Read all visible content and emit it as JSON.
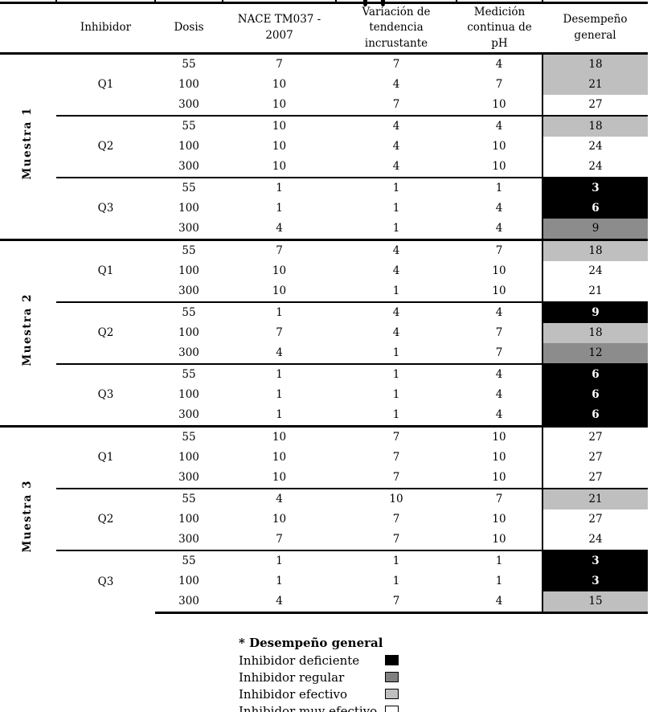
{
  "table": {
    "headers": [
      "",
      "Inhibidor",
      "Dosis",
      "NACE TM037 -\n2007",
      "Variación de\ntendencia\nincrustante",
      "Medición\ncontinua de\npH",
      "Desempeño\ngeneral"
    ],
    "groups": [
      {
        "sample": "Muestra 1",
        "inhibitors": [
          {
            "name": "Q1",
            "rows": [
              {
                "dosis": 55,
                "nace": 7,
                "variacion": 7,
                "ph": 4,
                "total": 18,
                "rating": "efectivo"
              },
              {
                "dosis": 100,
                "nace": 10,
                "variacion": 4,
                "ph": 7,
                "total": 21,
                "rating": "efectivo"
              },
              {
                "dosis": 300,
                "nace": 10,
                "variacion": 7,
                "ph": 10,
                "total": 27,
                "rating": "muy-efectivo"
              }
            ]
          },
          {
            "name": "Q2",
            "rows": [
              {
                "dosis": 55,
                "nace": 10,
                "variacion": 4,
                "ph": 4,
                "total": 18,
                "rating": "efectivo"
              },
              {
                "dosis": 100,
                "nace": 10,
                "variacion": 4,
                "ph": 10,
                "total": 24,
                "rating": "muy-efectivo"
              },
              {
                "dosis": 300,
                "nace": 10,
                "variacion": 4,
                "ph": 10,
                "total": 24,
                "rating": "muy-efectivo"
              }
            ]
          },
          {
            "name": "Q3",
            "rows": [
              {
                "dosis": 55,
                "nace": 1,
                "variacion": 1,
                "ph": 1,
                "total": 3,
                "rating": "deficiente"
              },
              {
                "dosis": 100,
                "nace": 1,
                "variacion": 1,
                "ph": 4,
                "total": 6,
                "rating": "deficiente"
              },
              {
                "dosis": 300,
                "nace": 4,
                "variacion": 1,
                "ph": 4,
                "total": 9,
                "rating": "regular"
              }
            ]
          }
        ]
      },
      {
        "sample": "Muestra 2",
        "inhibitors": [
          {
            "name": "Q1",
            "rows": [
              {
                "dosis": 55,
                "nace": 7,
                "variacion": 4,
                "ph": 7,
                "total": 18,
                "rating": "efectivo"
              },
              {
                "dosis": 100,
                "nace": 10,
                "variacion": 4,
                "ph": 10,
                "total": 24,
                "rating": "muy-efectivo"
              },
              {
                "dosis": 300,
                "nace": 10,
                "variacion": 1,
                "ph": 10,
                "total": 21,
                "rating": "muy-efectivo"
              }
            ]
          },
          {
            "name": "Q2",
            "rows": [
              {
                "dosis": 55,
                "nace": 1,
                "variacion": 4,
                "ph": 4,
                "total": 9,
                "rating": "deficiente"
              },
              {
                "dosis": 100,
                "nace": 7,
                "variacion": 4,
                "ph": 7,
                "total": 18,
                "rating": "efectivo"
              },
              {
                "dosis": 300,
                "nace": 4,
                "variacion": 1,
                "ph": 7,
                "total": 12,
                "rating": "regular"
              }
            ]
          },
          {
            "name": "Q3",
            "rows": [
              {
                "dosis": 55,
                "nace": 1,
                "variacion": 1,
                "ph": 4,
                "total": 6,
                "rating": "deficiente"
              },
              {
                "dosis": 100,
                "nace": 1,
                "variacion": 1,
                "ph": 4,
                "total": 6,
                "rating": "deficiente"
              },
              {
                "dosis": 300,
                "nace": 1,
                "variacion": 1,
                "ph": 4,
                "total": 6,
                "rating": "deficiente"
              }
            ]
          }
        ]
      },
      {
        "sample": "Muestra 3",
        "inhibitors": [
          {
            "name": "Q1",
            "rows": [
              {
                "dosis": 55,
                "nace": 10,
                "variacion": 7,
                "ph": 10,
                "total": 27,
                "rating": "muy-efectivo"
              },
              {
                "dosis": 100,
                "nace": 10,
                "variacion": 7,
                "ph": 10,
                "total": 27,
                "rating": "muy-efectivo"
              },
              {
                "dosis": 300,
                "nace": 10,
                "variacion": 7,
                "ph": 10,
                "total": 27,
                "rating": "muy-efectivo"
              }
            ]
          },
          {
            "name": "Q2",
            "rows": [
              {
                "dosis": 55,
                "nace": 4,
                "variacion": 10,
                "ph": 7,
                "total": 21,
                "rating": "efectivo"
              },
              {
                "dosis": 100,
                "nace": 10,
                "variacion": 7,
                "ph": 10,
                "total": 27,
                "rating": "muy-efectivo"
              },
              {
                "dosis": 300,
                "nace": 7,
                "variacion": 7,
                "ph": 10,
                "total": 24,
                "rating": "muy-efectivo"
              }
            ]
          },
          {
            "name": "Q3",
            "rows": [
              {
                "dosis": 55,
                "nace": 1,
                "variacion": 1,
                "ph": 1,
                "total": 3,
                "rating": "deficiente"
              },
              {
                "dosis": 100,
                "nace": 1,
                "variacion": 1,
                "ph": 1,
                "total": 3,
                "rating": "deficiente"
              },
              {
                "dosis": 300,
                "nace": 4,
                "variacion": 7,
                "ph": 4,
                "total": 15,
                "rating": "efectivo"
              }
            ]
          }
        ]
      }
    ]
  },
  "legend": {
    "title": "* Desempeño general",
    "items": [
      {
        "label": "Inhibidor deficiente",
        "color": "#000000"
      },
      {
        "label": "Inhibidor regular",
        "color": "#808080"
      },
      {
        "label": "Inhibidor efectivo",
        "color": "#bfbfbf"
      },
      {
        "label": "Inhibidor muy efectivo",
        "color": "#ffffff"
      }
    ]
  },
  "colors": {
    "deficiente": "#000000",
    "regular": "#8c8c8c",
    "efectivo": "#bfbfbf",
    "muy-efectivo": "#ffffff"
  }
}
